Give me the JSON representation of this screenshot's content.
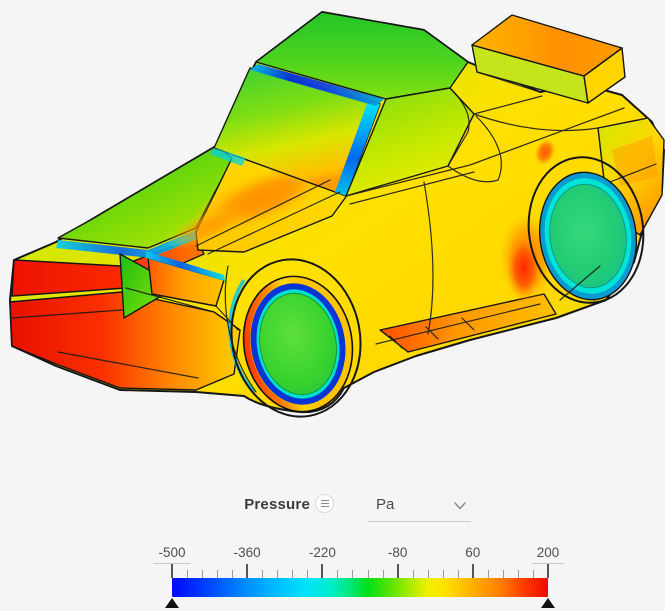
{
  "app": {
    "background": "#f5f5f6"
  },
  "viewport": {
    "content_name": "car-pressure-contour-3d"
  },
  "legend": {
    "field_label": "Pressure",
    "unit_value": "Pa",
    "scale": {
      "tick_labels": [
        "-500",
        "-360",
        "-220",
        "-80",
        "60",
        "200"
      ],
      "minor_divisions_per_interval": 5,
      "colormap": [
        {
          "c": "#0008f8",
          "p": "0%"
        },
        {
          "c": "#0048ff",
          "p": "10%"
        },
        {
          "c": "#0090ff",
          "p": "20%"
        },
        {
          "c": "#00c8ff",
          "p": "30%"
        },
        {
          "c": "#00e4f8",
          "p": "36%"
        },
        {
          "c": "#00ecd0",
          "p": "42%"
        },
        {
          "c": "#00e882",
          "p": "47%"
        },
        {
          "c": "#00e018",
          "p": "52%"
        },
        {
          "c": "#58e400",
          "p": "58%"
        },
        {
          "c": "#b4ec00",
          "p": "64%"
        },
        {
          "c": "#f0f000",
          "p": "68%"
        },
        {
          "c": "#ffe400",
          "p": "72%"
        },
        {
          "c": "#ffb000",
          "p": "80%"
        },
        {
          "c": "#ff7800",
          "p": "88%"
        },
        {
          "c": "#ff3800",
          "p": "94%"
        },
        {
          "c": "#f00800",
          "p": "100%"
        }
      ],
      "handle_color": "#111111"
    }
  }
}
